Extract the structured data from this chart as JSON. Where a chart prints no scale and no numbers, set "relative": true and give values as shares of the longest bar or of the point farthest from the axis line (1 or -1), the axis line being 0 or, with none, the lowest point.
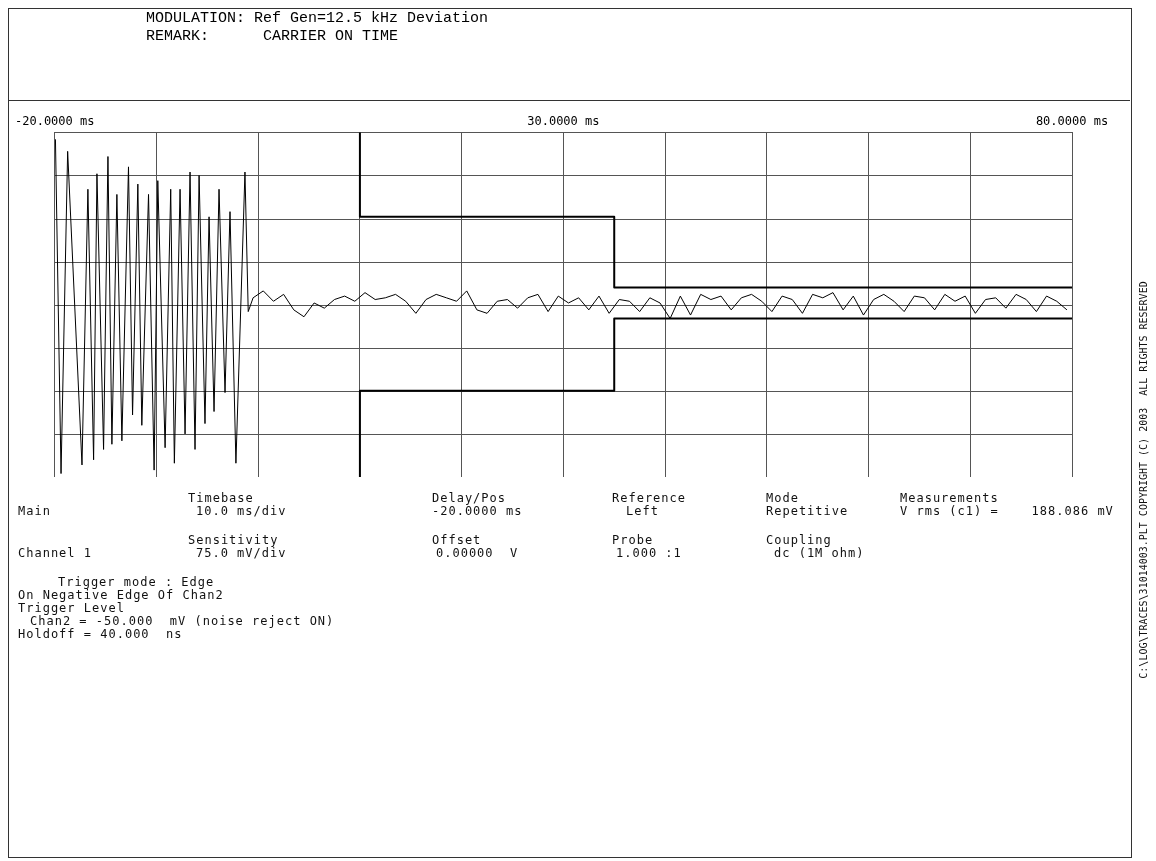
{
  "chart_data": {
    "type": "line",
    "title": "MODULATION: Ref Gen=12.5 kHz Deviation",
    "subtitle": "REMARK:      CARRIER ON TIME",
    "relative": true,
    "grid": true,
    "legend": false,
    "marker": "none",
    "line_style": "solid",
    "xlim": [
      -20,
      80
    ],
    "xticks": [
      {
        "value": -20,
        "label": "-20.0000 ms"
      },
      {
        "value": -10,
        "label": null
      },
      {
        "value": 0,
        "label": null
      },
      {
        "value": 10,
        "label": null
      },
      {
        "value": 20,
        "label": null
      },
      {
        "value": 30,
        "label": "30.0000 ms"
      },
      {
        "value": 40,
        "label": null
      },
      {
        "value": 50,
        "label": null
      },
      {
        "value": 60,
        "label": null
      },
      {
        "value": 70,
        "label": null
      },
      {
        "value": 80,
        "label": "80.0000 ms"
      }
    ],
    "series": [
      {
        "color": "#000000",
        "x": [
          -19.93,
          -19.38,
          -18.73,
          -17.32,
          -16.74,
          -16.18,
          -15.85,
          -15.2,
          -14.77,
          -14.38,
          -13.89,
          -13.4,
          -12.75,
          -12.35,
          -11.83,
          -11.44,
          -10.78,
          -10.23,
          -9.87,
          -9.15,
          -8.6,
          -8.24,
          -7.68,
          -7.19,
          -6.7,
          -6.21,
          -5.81,
          -5.23,
          -4.83,
          -4.34,
          -3.85,
          -3.26,
          -2.77,
          -2.19,
          -1.3,
          -0.98,
          -0.5,
          0.5,
          1.5,
          2.5,
          3.5,
          4.5,
          5.5,
          6.5,
          7.5,
          8.5,
          9.5,
          10.5,
          11.5,
          12.5,
          13.5,
          14.5,
          15.5,
          16.5,
          17.5,
          18.5,
          19.5,
          20.5,
          21.5,
          22.5,
          23.5,
          24.5,
          25.5,
          26.5,
          27.5,
          28.5,
          29.5,
          30.5,
          31.5,
          32.5,
          33.5,
          34.5,
          35.5,
          36.5,
          37.5,
          38.5,
          39.5,
          40.5,
          41.5,
          42.5,
          43.5,
          44.5,
          45.5,
          46.5,
          47.5,
          48.5,
          49.5,
          50.5,
          51.5,
          52.5,
          53.5,
          54.5,
          55.5,
          56.5,
          57.5,
          58.5,
          59.5,
          60.5,
          61.5,
          62.5,
          63.5,
          64.5,
          65.5,
          66.5,
          67.5,
          68.5,
          69.5,
          70.5,
          71.5,
          72.5,
          73.5,
          74.5,
          75.5,
          76.5,
          77.5,
          78.5,
          79.5
        ],
        "values": [
          0.96,
          -0.98,
          0.89,
          -0.93,
          0.67,
          -0.9,
          0.76,
          -0.84,
          0.86,
          -0.81,
          0.64,
          -0.79,
          0.8,
          -0.64,
          0.7,
          -0.7,
          0.64,
          -0.96,
          0.72,
          -0.83,
          0.67,
          -0.92,
          0.67,
          -0.75,
          0.77,
          -0.84,
          0.75,
          -0.69,
          0.51,
          -0.62,
          0.67,
          -0.51,
          0.54,
          -0.92,
          0.77,
          -0.04,
          0.04,
          0.08,
          0.02,
          0.06,
          -0.03,
          -0.07,
          0.01,
          -0.02,
          0.03,
          0.05,
          0.02,
          0.07,
          0.03,
          0.04,
          0.06,
          0.02,
          -0.05,
          0.03,
          0.06,
          0.04,
          0.02,
          0.08,
          -0.03,
          -0.05,
          0.02,
          0.03,
          -0.02,
          0.04,
          0.06,
          -0.04,
          0.05,
          0.01,
          0.04,
          -0.03,
          0.05,
          -0.05,
          0.03,
          0.02,
          -0.04,
          0.04,
          0.01,
          -0.08,
          0.05,
          -0.06,
          0.06,
          0.03,
          0.05,
          -0.03,
          0.04,
          0.06,
          0.02,
          -0.04,
          0.05,
          0.03,
          -0.05,
          0.06,
          0.04,
          0.07,
          -0.03,
          0.05,
          -0.06,
          0.03,
          0.06,
          0.02,
          -0.04,
          0.05,
          0.04,
          -0.03,
          0.06,
          0.02,
          0.05,
          -0.05,
          0.03,
          0.04,
          -0.02,
          0.06,
          0.03,
          -0.04,
          0.05,
          0.02,
          -0.03
        ]
      },
      {
        "color": "#000000",
        "x": [
          10,
          10,
          35,
          35,
          80
        ],
        "values": [
          1,
          0.51,
          0.51,
          0.1,
          0.1
        ]
      },
      {
        "color": "#000000",
        "x": [
          10,
          10,
          35,
          35,
          80
        ],
        "values": [
          -1,
          -0.5,
          -0.5,
          -0.08,
          -0.08
        ]
      }
    ],
    "annotations": [
      "Main",
      "Timebase",
      "10.0 ms/div",
      "Delay/Pos",
      "-20.0000 ms",
      "Reference",
      "Left",
      "Mode",
      "Repetitive",
      "Measurements",
      "V rms (c1) =    188.086 mV",
      "Channel 1",
      "Sensitivity",
      "75.0 mV/div",
      "Offset",
      "0.00000  V",
      "Probe",
      "1.000 :1",
      "Coupling",
      "dc (1M ohm)",
      "Trigger mode : Edge",
      "On Negative Edge Of Chan2",
      "Trigger Level",
      "Chan2 = -50.000  mV (noise reject ON)",
      "Holdoff = 40.000  ns",
      "C:\\LOG\\TRACES\\31014003.PLT COPYRIGHT (C) 2003  ALL RIGHTS RESERVED"
    ]
  }
}
